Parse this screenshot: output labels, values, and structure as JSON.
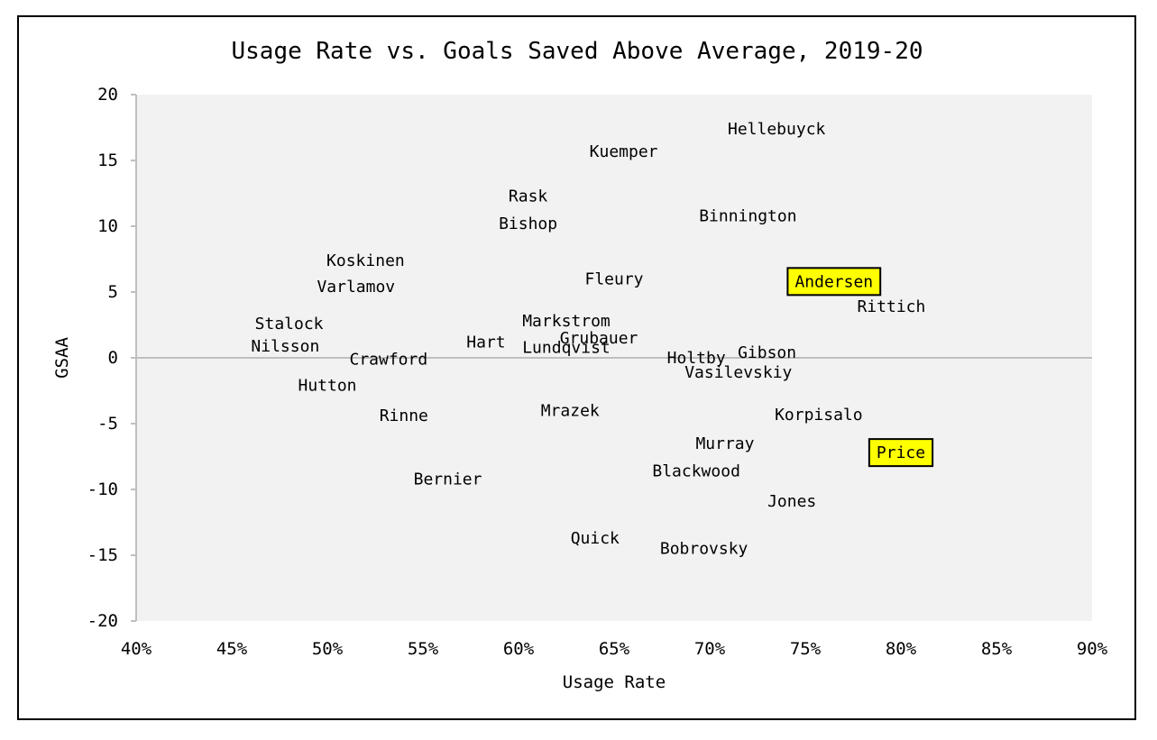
{
  "chart_data": {
    "type": "scatter",
    "title": "Usage Rate vs. Goals Saved Above Average, 2019-20",
    "xlabel": "Usage Rate",
    "ylabel": "GSAA",
    "xlim": [
      0.4,
      0.9
    ],
    "ylim": [
      -20,
      20
    ],
    "x_ticks": [
      "40%",
      "45%",
      "50%",
      "55%",
      "60%",
      "65%",
      "70%",
      "75%",
      "80%",
      "85%",
      "90%"
    ],
    "y_ticks": [
      "20",
      "15",
      "10",
      "5",
      "0",
      "-5",
      "-10",
      "-15",
      "-20"
    ],
    "grid": false,
    "plot_background": "#f2f2f2",
    "axis_line_color": "#bfbfbf",
    "highlight_color": "#ffff00",
    "points": [
      {
        "label": "Hellebuyck",
        "x": 0.735,
        "y": 17.4,
        "highlight": false
      },
      {
        "label": "Kuemper",
        "x": 0.655,
        "y": 15.7,
        "highlight": false
      },
      {
        "label": "Rask",
        "x": 0.605,
        "y": 12.3,
        "highlight": false
      },
      {
        "label": "Bishop",
        "x": 0.605,
        "y": 10.2,
        "highlight": false
      },
      {
        "label": "Binnington",
        "x": 0.72,
        "y": 10.8,
        "highlight": false
      },
      {
        "label": "Koskinen",
        "x": 0.52,
        "y": 7.4,
        "highlight": false
      },
      {
        "label": "Varlamov",
        "x": 0.515,
        "y": 5.4,
        "highlight": false
      },
      {
        "label": "Fleury",
        "x": 0.65,
        "y": 6.0,
        "highlight": false
      },
      {
        "label": "Andersen",
        "x": 0.765,
        "y": 5.8,
        "highlight": true
      },
      {
        "label": "Rittich",
        "x": 0.795,
        "y": 3.9,
        "highlight": false
      },
      {
        "label": "Stalock",
        "x": 0.48,
        "y": 2.6,
        "highlight": false
      },
      {
        "label": "Nilsson",
        "x": 0.478,
        "y": 0.9,
        "highlight": false
      },
      {
        "label": "Markstrom",
        "x": 0.625,
        "y": 2.8,
        "highlight": false
      },
      {
        "label": "Grubauer",
        "x": 0.642,
        "y": 1.5,
        "highlight": false
      },
      {
        "label": "Hart",
        "x": 0.583,
        "y": 1.2,
        "highlight": false
      },
      {
        "label": "Lundqvist",
        "x": 0.625,
        "y": 0.8,
        "highlight": false
      },
      {
        "label": "Crawford",
        "x": 0.532,
        "y": -0.1,
        "highlight": false
      },
      {
        "label": "Holtby",
        "x": 0.693,
        "y": 0.0,
        "highlight": false
      },
      {
        "label": "Gibson",
        "x": 0.73,
        "y": 0.4,
        "highlight": false
      },
      {
        "label": "Vasilevskiy",
        "x": 0.715,
        "y": -1.1,
        "highlight": false
      },
      {
        "label": "Hutton",
        "x": 0.5,
        "y": -2.1,
        "highlight": false
      },
      {
        "label": "Rinne",
        "x": 0.54,
        "y": -4.4,
        "highlight": false
      },
      {
        "label": "Mrazek",
        "x": 0.627,
        "y": -4.0,
        "highlight": false
      },
      {
        "label": "Korpisalo",
        "x": 0.757,
        "y": -4.3,
        "highlight": false
      },
      {
        "label": "Murray",
        "x": 0.708,
        "y": -6.5,
        "highlight": false
      },
      {
        "label": "Price",
        "x": 0.8,
        "y": -7.2,
        "highlight": true
      },
      {
        "label": "Blackwood",
        "x": 0.693,
        "y": -8.6,
        "highlight": false
      },
      {
        "label": "Bernier",
        "x": 0.563,
        "y": -9.2,
        "highlight": false
      },
      {
        "label": "Jones",
        "x": 0.743,
        "y": -10.9,
        "highlight": false
      },
      {
        "label": "Quick",
        "x": 0.64,
        "y": -13.7,
        "highlight": false
      },
      {
        "label": "Bobrovsky",
        "x": 0.697,
        "y": -14.5,
        "highlight": false
      }
    ]
  }
}
